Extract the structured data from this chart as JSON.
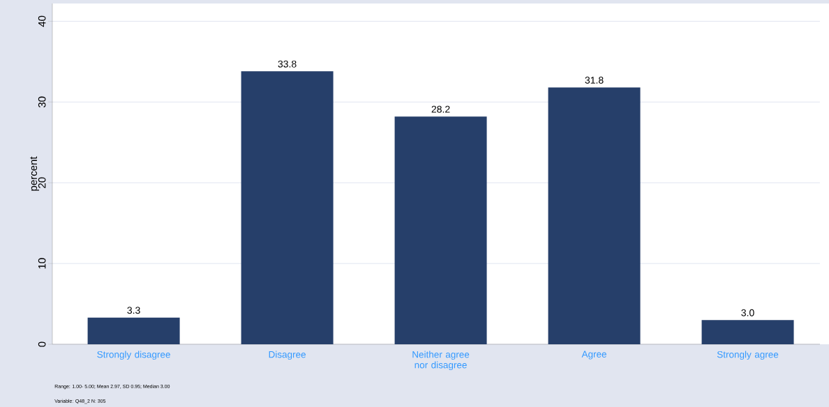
{
  "chart_data": {
    "type": "bar",
    "ylabel": "percent",
    "categories": [
      "Strongly disagree",
      "Disagree",
      "Neither agree nor disagree",
      "Agree",
      "Strongly agree"
    ],
    "values": [
      3.3,
      33.8,
      28.2,
      31.8,
      3.0
    ],
    "value_labels": [
      "3.3",
      "33.8",
      "28.2",
      "31.8",
      "3.0"
    ],
    "color": "#263f6a",
    "ylim": [
      0,
      42.2
    ],
    "yticks": [
      0,
      10,
      20,
      30,
      40
    ],
    "grid": "y",
    "annotations": [
      "Range:    1.00-    5.00; Mean 2.97, SD 0.95; Median 3.00",
      "Variable: Q48_2 N:    305"
    ]
  }
}
